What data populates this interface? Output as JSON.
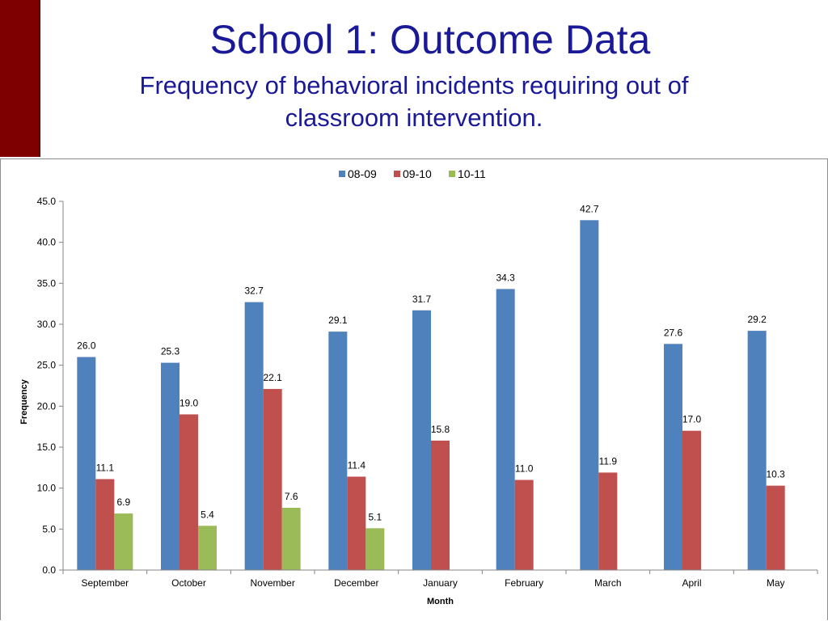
{
  "slide": {
    "title": "School 1: Outcome Data",
    "subtitle": "Frequency of behavioral incidents requiring out of classroom intervention."
  },
  "colors": {
    "accent_box": "#7f0000",
    "title_text": "#1a1a99",
    "series_08_09": "#4f81bd",
    "series_09_10": "#c0504d",
    "series_10_11": "#9bbb59"
  },
  "chart_data": {
    "type": "bar",
    "title": "",
    "xlabel": "Month",
    "ylabel": "Frequency",
    "ylim": [
      0,
      45
    ],
    "yticks": [
      "0.0",
      "5.0",
      "10.0",
      "15.0",
      "20.0",
      "25.0",
      "30.0",
      "35.0",
      "40.0",
      "45.0"
    ],
    "grid": false,
    "legend_position": "top",
    "categories": [
      "September",
      "October",
      "November",
      "December",
      "January",
      "February",
      "March",
      "April",
      "May"
    ],
    "series": [
      {
        "name": "08-09",
        "color": "#4f81bd",
        "values": [
          26.0,
          25.3,
          32.7,
          29.1,
          31.7,
          34.3,
          42.7,
          27.6,
          29.2
        ],
        "labels": [
          "26.0",
          "25.3",
          "32.7",
          "29.1",
          "31.7",
          "34.3",
          "42.7",
          "27.6",
          "29.2"
        ]
      },
      {
        "name": "09-10",
        "color": "#c0504d",
        "values": [
          11.1,
          19.0,
          22.1,
          11.4,
          15.8,
          11.0,
          11.9,
          17.0,
          10.3
        ],
        "labels": [
          "11.1",
          "19.0",
          "22.1",
          "11.4",
          "15.8",
          "11.0",
          "11.9",
          "17.0",
          "10.3"
        ]
      },
      {
        "name": "10-11",
        "color": "#9bbb59",
        "values": [
          6.9,
          5.4,
          7.6,
          5.1,
          null,
          null,
          null,
          null,
          null
        ],
        "labels": [
          "6.9",
          "5.4",
          "7.6",
          "5.1",
          null,
          null,
          null,
          null,
          null
        ]
      }
    ]
  }
}
